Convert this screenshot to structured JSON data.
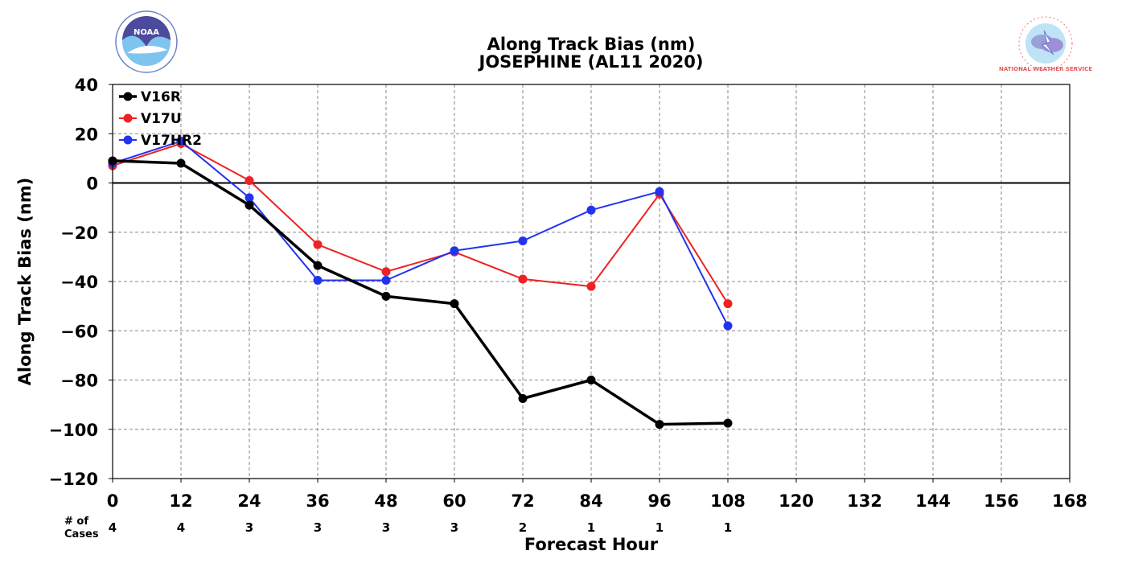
{
  "chart_data": {
    "type": "line",
    "title": "Along Track Bias (nm)",
    "subtitle": "JOSEPHINE (AL11 2020)",
    "xlabel": "Forecast Hour",
    "ylabel": "Along Track Bias (nm)",
    "xlim": [
      0,
      168
    ],
    "ylim": [
      -120,
      40
    ],
    "x_ticks": [
      0,
      12,
      24,
      36,
      48,
      60,
      72,
      84,
      96,
      108,
      120,
      132,
      144,
      156,
      168
    ],
    "y_ticks": [
      -120,
      -100,
      -80,
      -60,
      -40,
      -20,
      0,
      20,
      40
    ],
    "y_tick_labels": [
      "−120",
      "−100",
      "−80",
      "−60",
      "−40",
      "−20",
      "0",
      "20",
      "40"
    ],
    "grid": true,
    "legend_position": "top-left",
    "series": [
      {
        "name": "V16R",
        "color": "#000000",
        "x": [
          0,
          12,
          24,
          36,
          48,
          60,
          72,
          84,
          96,
          108
        ],
        "values": [
          9,
          8,
          -9,
          -33.5,
          -46,
          -49,
          -87.5,
          -80,
          -98,
          -97.5
        ]
      },
      {
        "name": "V17U",
        "color": "#ee2222",
        "x": [
          0,
          12,
          24,
          36,
          48,
          60,
          72,
          84,
          96,
          108
        ],
        "values": [
          7,
          16,
          1,
          -25,
          -36,
          -28,
          -39,
          -42,
          -4.5,
          -49
        ]
      },
      {
        "name": "V17HR2",
        "color": "#2233ee",
        "x": [
          0,
          12,
          24,
          36,
          48,
          60,
          72,
          84,
          96,
          108
        ],
        "values": [
          8,
          17,
          -6,
          -39.5,
          -39.5,
          -27.5,
          -23.5,
          -11,
          -3.5,
          -58
        ]
      }
    ],
    "cases_label_line1": "# of",
    "cases_label_line2": "Cases",
    "cases": [
      {
        "x": 0,
        "n": "4"
      },
      {
        "x": 12,
        "n": "4"
      },
      {
        "x": 24,
        "n": "3"
      },
      {
        "x": 36,
        "n": "3"
      },
      {
        "x": 48,
        "n": "3"
      },
      {
        "x": 60,
        "n": "3"
      },
      {
        "x": 72,
        "n": "2"
      },
      {
        "x": 84,
        "n": "1"
      },
      {
        "x": 96,
        "n": "1"
      },
      {
        "x": 108,
        "n": "1"
      }
    ]
  },
  "logos": {
    "left_text": "NOAA",
    "right_text": "NATIONAL WEATHER SERVICE"
  }
}
